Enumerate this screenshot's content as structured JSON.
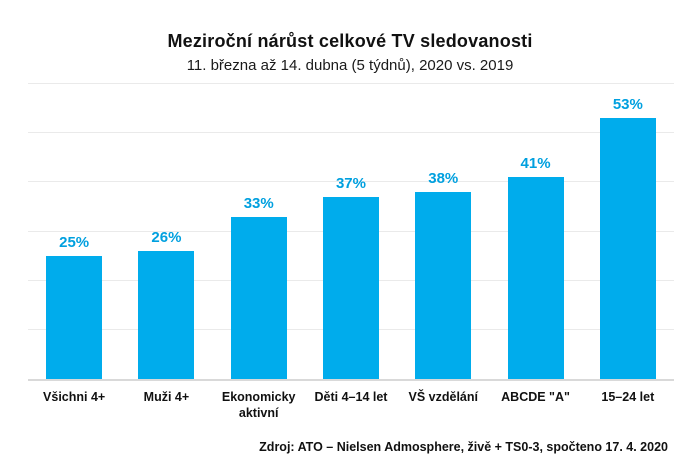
{
  "header": {
    "title": "Meziroční nárůst celkové TV sledovanosti",
    "subtitle": "11. března až 14. dubna (5 týdnů), 2020 vs. 2019"
  },
  "footer": {
    "source": "Zdroj: ATO – Nielsen Admosphere, živě + TS0-3, spočteno 17. 4. 2020"
  },
  "chart_data": {
    "type": "bar",
    "title": "Meziroční nárůst celkové TV sledovanosti",
    "subtitle": "11. března až 14. dubna (5 týdnů), 2020 vs. 2019",
    "categories": [
      "Všichni 4+",
      "Muži 4+",
      "Ekonomicky aktivní",
      "Děti 4–14 let",
      "VŠ vzdělání",
      "ABCDE \"A\"",
      "15–24 let"
    ],
    "values": [
      25,
      26,
      33,
      37,
      38,
      41,
      53
    ],
    "value_labels": [
      "25%",
      "26%",
      "33%",
      "37%",
      "38%",
      "41%",
      "53%"
    ],
    "xlabel": "",
    "ylabel": "",
    "ylim": [
      0,
      60
    ],
    "grid_step": 10,
    "grid": "horizontal gridlines every 10%, no y-axis tick labels",
    "legend": "none",
    "bar_color": "#00ACEC",
    "value_label_color": "#00A0DF",
    "gridline_color": "#EAEAEA",
    "baseline_color": "#D9D9D9"
  }
}
